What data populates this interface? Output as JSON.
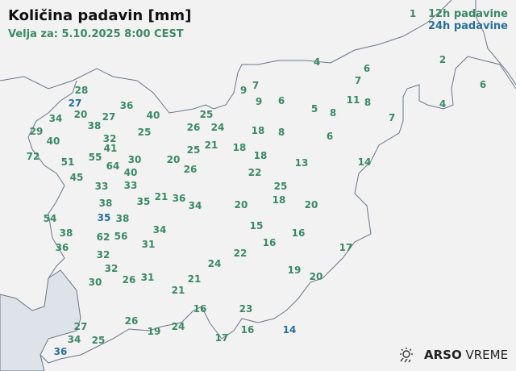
{
  "header": {
    "title": "Količina padavin [mm]",
    "valid": "Velja za: 5.10.2025 8:00 CEST"
  },
  "legend": {
    "h12": "12h padavine",
    "h24": "24h padavine"
  },
  "colors": {
    "h12": "#3a8a63",
    "h24": "#2a6f9b",
    "sea": "#dde3e8",
    "border": "#6b7585"
  },
  "logo": {
    "brand": "ARSO",
    "product": "VREME",
    "icon": "sun-rain-icon"
  },
  "stations": [
    {
      "v": "28",
      "t": "12h"
    },
    {
      "v": "27",
      "t": "24h"
    },
    {
      "v": "36",
      "t": "12h"
    },
    {
      "v": "34",
      "t": "12h"
    },
    {
      "v": "20",
      "t": "12h"
    },
    {
      "v": "27",
      "t": "12h"
    },
    {
      "v": "40",
      "t": "12h"
    },
    {
      "v": "38",
      "t": "12h"
    },
    {
      "v": "32",
      "t": "12h"
    },
    {
      "v": "25",
      "t": "12h"
    },
    {
      "v": "29",
      "t": "12h"
    },
    {
      "v": "40",
      "t": "12h"
    },
    {
      "v": "41",
      "t": "12h"
    },
    {
      "v": "72",
      "t": "12h"
    },
    {
      "v": "51",
      "t": "12h"
    },
    {
      "v": "55",
      "t": "12h"
    },
    {
      "v": "64",
      "t": "12h"
    },
    {
      "v": "30",
      "t": "12h"
    },
    {
      "v": "40",
      "t": "12h"
    },
    {
      "v": "33",
      "t": "12h"
    },
    {
      "v": "45",
      "t": "12h"
    },
    {
      "v": "33",
      "t": "12h"
    },
    {
      "v": "20",
      "t": "12h"
    },
    {
      "v": "26",
      "t": "12h"
    },
    {
      "v": "26",
      "t": "12h"
    },
    {
      "v": "25",
      "t": "12h"
    },
    {
      "v": "24",
      "t": "12h"
    },
    {
      "v": "25",
      "t": "12h"
    },
    {
      "v": "21",
      "t": "12h"
    },
    {
      "v": "35",
      "t": "12h"
    },
    {
      "v": "21",
      "t": "12h"
    },
    {
      "v": "36",
      "t": "12h"
    },
    {
      "v": "34",
      "t": "12h"
    },
    {
      "v": "38",
      "t": "12h"
    },
    {
      "v": "35",
      "t": "24h"
    },
    {
      "v": "38",
      "t": "12h"
    },
    {
      "v": "54",
      "t": "12h"
    },
    {
      "v": "38",
      "t": "12h"
    },
    {
      "v": "36",
      "t": "12h"
    },
    {
      "v": "62",
      "t": "12h"
    },
    {
      "v": "56",
      "t": "12h"
    },
    {
      "v": "34",
      "t": "12h"
    },
    {
      "v": "31",
      "t": "12h"
    },
    {
      "v": "32",
      "t": "12h"
    },
    {
      "v": "32",
      "t": "12h"
    },
    {
      "v": "26",
      "t": "12h"
    },
    {
      "v": "31",
      "t": "12h"
    },
    {
      "v": "30",
      "t": "12h"
    },
    {
      "v": "24",
      "t": "12h"
    },
    {
      "v": "21",
      "t": "12h"
    },
    {
      "v": "21",
      "t": "12h"
    },
    {
      "v": "16",
      "t": "12h"
    },
    {
      "v": "17",
      "t": "12h"
    },
    {
      "v": "26",
      "t": "12h"
    },
    {
      "v": "19",
      "t": "12h"
    },
    {
      "v": "24",
      "t": "12h"
    },
    {
      "v": "27",
      "t": "12h"
    },
    {
      "v": "34",
      "t": "12h"
    },
    {
      "v": "25",
      "t": "12h"
    },
    {
      "v": "36",
      "t": "24h"
    },
    {
      "v": "4",
      "t": "12h"
    },
    {
      "v": "6",
      "t": "12h"
    },
    {
      "v": "7",
      "t": "12h"
    },
    {
      "v": "9",
      "t": "12h"
    },
    {
      "v": "7",
      "t": "12h"
    },
    {
      "v": "9",
      "t": "12h"
    },
    {
      "v": "6",
      "t": "12h"
    },
    {
      "v": "5",
      "t": "12h"
    },
    {
      "v": "8",
      "t": "12h"
    },
    {
      "v": "11",
      "t": "12h"
    },
    {
      "v": "8",
      "t": "12h"
    },
    {
      "v": "2",
      "t": "12h"
    },
    {
      "v": "6",
      "t": "12h"
    },
    {
      "v": "4",
      "t": "12h"
    },
    {
      "v": "7",
      "t": "12h"
    },
    {
      "v": "18",
      "t": "12h"
    },
    {
      "v": "8",
      "t": "12h"
    },
    {
      "v": "6",
      "t": "12h"
    },
    {
      "v": "18",
      "t": "12h"
    },
    {
      "v": "18",
      "t": "12h"
    },
    {
      "v": "13",
      "t": "12h"
    },
    {
      "v": "14",
      "t": "12h"
    },
    {
      "v": "22",
      "t": "12h"
    },
    {
      "v": "25",
      "t": "12h"
    },
    {
      "v": "18",
      "t": "12h"
    },
    {
      "v": "20",
      "t": "12h"
    },
    {
      "v": "20",
      "t": "12h"
    },
    {
      "v": "15",
      "t": "12h"
    },
    {
      "v": "16",
      "t": "12h"
    },
    {
      "v": "16",
      "t": "12h"
    },
    {
      "v": "22",
      "t": "12h"
    },
    {
      "v": "17",
      "t": "12h"
    },
    {
      "v": "19",
      "t": "12h"
    },
    {
      "v": "20",
      "t": "12h"
    },
    {
      "v": "23",
      "t": "12h"
    },
    {
      "v": "16",
      "t": "12h"
    },
    {
      "v": "14",
      "t": "24h"
    },
    {
      "v": "1",
      "t": "12h"
    }
  ]
}
